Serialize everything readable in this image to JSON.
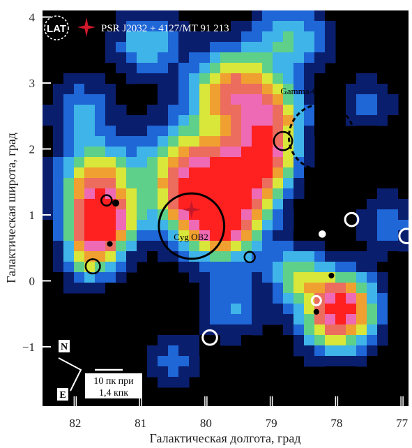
{
  "chart_data": {
    "type": "heatmap",
    "xlabel": "Галактическая долгота, град",
    "ylabel": "Галактическая широта, град",
    "xlim": [
      82.5,
      76.9
    ],
    "ylim": [
      -1.9,
      4.1
    ],
    "x_ticks": [
      {
        "value": 82,
        "label": "82"
      },
      {
        "value": 81,
        "label": "81"
      },
      {
        "value": 80,
        "label": "80"
      },
      {
        "value": 79,
        "label": "79"
      },
      {
        "value": 78,
        "label": "78"
      },
      {
        "value": 77,
        "label": "77"
      }
    ],
    "y_ticks": [
      {
        "value": 4,
        "label": "4"
      },
      {
        "value": 3,
        "label": "3"
      },
      {
        "value": 2,
        "label": "2"
      },
      {
        "value": 1,
        "label": "1"
      },
      {
        "value": 0,
        "label": "0"
      },
      {
        "value": -1,
        "label": "−1"
      }
    ],
    "instrument_badge": "LAT",
    "legend": {
      "marker": "red four-point star",
      "label": "PSR J2032 + 4127/MT 91 213"
    },
    "colormap": [
      "#000000",
      "#0a1e6e",
      "#1f66d6",
      "#3fb4e8",
      "#5fd08a",
      "#d9e63a",
      "#f0a030",
      "#ec6d5e",
      "#ef6ab4",
      "#ff2020"
    ],
    "blobs": [
      {
        "l": 79.75,
        "b": 1.0,
        "sigma": 0.45,
        "amp": 1.0
      },
      {
        "l": 80.2,
        "b": 1.6,
        "sigma": 0.55,
        "amp": 0.75
      },
      {
        "l": 79.15,
        "b": 1.8,
        "sigma": 0.35,
        "amp": 0.8
      },
      {
        "l": 79.6,
        "b": 2.9,
        "sigma": 0.45,
        "amp": 0.7
      },
      {
        "l": 78.95,
        "b": 2.5,
        "sigma": 0.35,
        "amp": 0.55
      },
      {
        "l": 81.6,
        "b": 0.9,
        "sigma": 0.35,
        "amp": 1.0
      },
      {
        "l": 81.7,
        "b": 1.6,
        "sigma": 0.4,
        "amp": 0.55
      },
      {
        "l": 81.8,
        "b": 0.3,
        "sigma": 0.3,
        "amp": 0.4
      },
      {
        "l": 78.0,
        "b": -0.6,
        "sigma": 0.4,
        "amp": 0.6
      },
      {
        "l": 77.9,
        "b": -0.3,
        "sigma": 0.35,
        "amp": 0.5
      },
      {
        "l": 78.6,
        "b": 0.1,
        "sigma": 0.3,
        "amp": 0.45
      },
      {
        "l": 79.6,
        "b": -0.4,
        "sigma": 0.35,
        "amp": 0.3
      },
      {
        "l": 80.9,
        "b": 3.6,
        "sigma": 0.35,
        "amp": 0.4
      },
      {
        "l": 78.7,
        "b": 3.7,
        "sigma": 0.4,
        "amp": 0.4
      },
      {
        "l": 81.9,
        "b": 2.6,
        "sigma": 0.35,
        "amp": 0.3
      },
      {
        "l": 77.2,
        "b": 0.9,
        "sigma": 0.35,
        "amp": 0.25
      },
      {
        "l": 80.5,
        "b": -1.2,
        "sigma": 0.3,
        "amp": 0.25
      },
      {
        "l": 77.5,
        "b": 2.7,
        "sigma": 0.3,
        "amp": 0.25
      }
    ],
    "regions": [
      {
        "name": "Cyg OB2",
        "l": 80.22,
        "b": 0.83,
        "r": 0.5,
        "style": "solid"
      },
      {
        "name": "Gamma-Cygni",
        "l": 78.23,
        "b": 2.18,
        "r": 0.5,
        "style": "dashed"
      }
    ],
    "pulsar": {
      "l": 80.22,
      "b": 1.08
    },
    "black_circles": [
      {
        "l": 78.82,
        "b": 2.12,
        "r": 0.14
      },
      {
        "l": 81.52,
        "b": 1.22,
        "r": 0.08
      },
      {
        "l": 81.38,
        "b": 1.18,
        "r": 0.04
      },
      {
        "l": 81.47,
        "b": 0.56,
        "r": 0.03
      },
      {
        "l": 81.73,
        "b": 0.22,
        "r": 0.11
      },
      {
        "l": 79.33,
        "b": 0.36,
        "r": 0.08
      },
      {
        "l": 78.08,
        "b": 0.08,
        "r": 0.03
      },
      {
        "l": 78.31,
        "b": -0.47,
        "r": 0.03
      }
    ],
    "white_circles": [
      {
        "l": 77.77,
        "b": 0.93,
        "r": 0.1
      },
      {
        "l": 78.22,
        "b": 0.71,
        "r": 0.04
      },
      {
        "l": 76.93,
        "b": 0.68,
        "r": 0.11
      },
      {
        "l": 78.31,
        "b": -0.3,
        "r": 0.07
      },
      {
        "l": 79.94,
        "b": -0.86,
        "r": 0.11
      }
    ],
    "compass": {
      "north": "N",
      "east": "E"
    },
    "scale_bar_text": [
      "10 пк при",
      "1,4 кпк"
    ]
  }
}
